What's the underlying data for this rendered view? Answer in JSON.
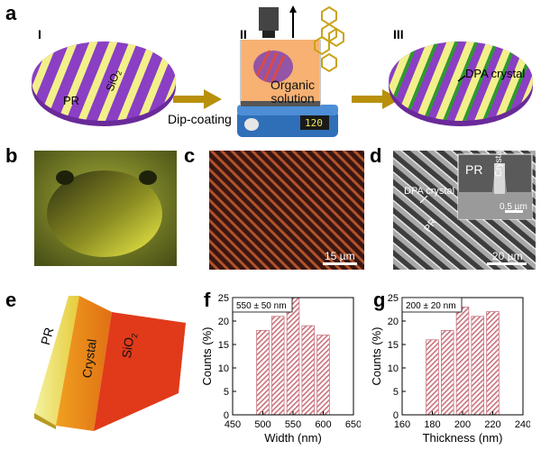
{
  "panels": {
    "a": {
      "letter": "a",
      "step1": "I",
      "step2": "II",
      "step3": "III",
      "pr": "PR",
      "sio2": "SiO",
      "sio2_sub": "2",
      "organic_l1": "Organic",
      "organic_l2": "solution",
      "dip_coating": "Dip-coating",
      "dpa_crystal": "DPA crystal",
      "temperature": "120"
    },
    "b": {
      "letter": "b"
    },
    "c": {
      "letter": "c",
      "scale": "15 µm"
    },
    "d": {
      "letter": "d",
      "scale": "20 µm",
      "dpa_crystal": "DPA crystal",
      "pr": "PR",
      "inset_pr": "PR",
      "inset_crystal": "Crystal",
      "inset_scale": "0.5 µm"
    },
    "e": {
      "letter": "e",
      "pr": "PR",
      "crystal": "Crystal",
      "sio2": "SiO",
      "sio2_sub": "2"
    },
    "f": {
      "letter": "f"
    },
    "g": {
      "letter": "g"
    }
  },
  "colors": {
    "purple": "#8a3fc4",
    "yellow": "#f3f08a",
    "green": "#2e9a2e",
    "arrow": "#b8900a",
    "bar_hatch": "#c8727c"
  },
  "chart_data": [
    {
      "type": "bar",
      "title": "550 ± 50 nm",
      "xlabel": "Width (nm)",
      "ylabel": "Counts (%)",
      "x": [
        500,
        525,
        550,
        575,
        600
      ],
      "values": [
        18,
        21,
        25,
        19,
        17
      ],
      "xlim": [
        450,
        650
      ],
      "ylim": [
        0,
        25
      ],
      "xticks": [
        "450",
        "500",
        "550",
        "600",
        "650"
      ],
      "yticks": [
        "0",
        "5",
        "10",
        "15",
        "20",
        "25"
      ]
    },
    {
      "type": "bar",
      "title": "200 ± 20 nm",
      "xlabel": "Thickness (nm)",
      "ylabel": "Counts (%)",
      "x": [
        180,
        190,
        200,
        210,
        220
      ],
      "values": [
        16,
        18,
        23,
        21,
        22
      ],
      "xlim": [
        160,
        240
      ],
      "ylim": [
        0,
        25
      ],
      "xticks": [
        "160",
        "180",
        "200",
        "220",
        "240"
      ],
      "yticks": [
        "0",
        "5",
        "10",
        "15",
        "20",
        "25"
      ]
    }
  ]
}
